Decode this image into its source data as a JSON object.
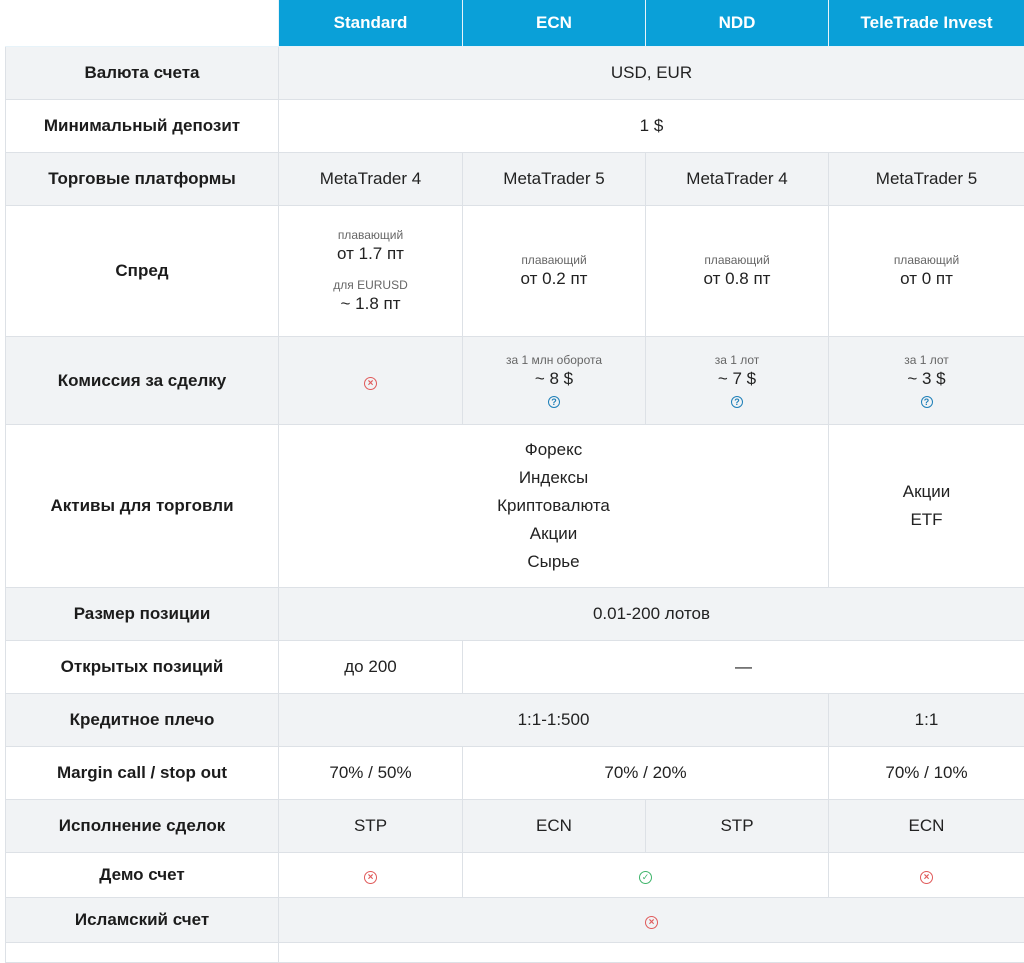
{
  "header": {
    "columns": [
      "Standard",
      "ECN",
      "NDD",
      "TeleTrade Invest"
    ]
  },
  "rows": {
    "currency": {
      "label": "Валюта счета",
      "value": "USD, EUR"
    },
    "min_deposit": {
      "label": "Минимальный депозит",
      "value": "1 $"
    },
    "platforms": {
      "label": "Торговые платформы",
      "values": [
        "MetaTrader 4",
        "MetaTrader 5",
        "MetaTrader 4",
        "MetaTrader 5"
      ]
    },
    "spread": {
      "label": "Спред",
      "standard": {
        "note1": "плавающий",
        "value1": "от 1.7 пт",
        "note2": "для EURUSD",
        "value2": "~ 1.8 пт"
      },
      "ecn": {
        "note": "плавающий",
        "value": "от 0.2 пт"
      },
      "ndd": {
        "note": "плавающий",
        "value": "от 0.8 пт"
      },
      "invest": {
        "note": "плавающий",
        "value": "от 0 пт"
      }
    },
    "commission": {
      "label": "Комиссия за сделку",
      "ecn": {
        "note": "за 1 млн оборота",
        "value": "~ 8 $"
      },
      "ndd": {
        "note": "за 1 лот",
        "value": "~ 7 $"
      },
      "invest": {
        "note": "за 1 лот",
        "value": "~ 3 $"
      }
    },
    "assets": {
      "label": "Активы для торговли",
      "main": [
        "Форекс",
        "Индексы",
        "Криптовалюта",
        "Акции",
        "Сырье"
      ],
      "invest": [
        "Акции",
        "ETF"
      ]
    },
    "position_size": {
      "label": "Размер позиции",
      "value": "0.01-200 лотов"
    },
    "open_positions": {
      "label": "Открытых позиций",
      "standard": "до 200",
      "rest": "—"
    },
    "leverage": {
      "label": "Кредитное плечо",
      "main": "1:1-1:500",
      "invest": "1:1"
    },
    "margin": {
      "label": "Margin call / stop out",
      "standard": "70% / 50%",
      "mid": "70% / 20%",
      "invest": "70% / 10%"
    },
    "execution": {
      "label": "Исполнение сделок",
      "values": [
        "STP",
        "ECN",
        "STP",
        "ECN"
      ]
    },
    "demo": {
      "label": "Демо счет"
    },
    "islamic": {
      "label": "Исламский счет"
    }
  },
  "icons": {
    "no": "x-circle-icon",
    "yes": "check-circle-icon",
    "help": "question-circle-icon"
  },
  "colors": {
    "header_bg": "#0aa0d8",
    "no": "#e05a5a",
    "yes": "#3fb56b",
    "help": "#1e7fb8"
  }
}
